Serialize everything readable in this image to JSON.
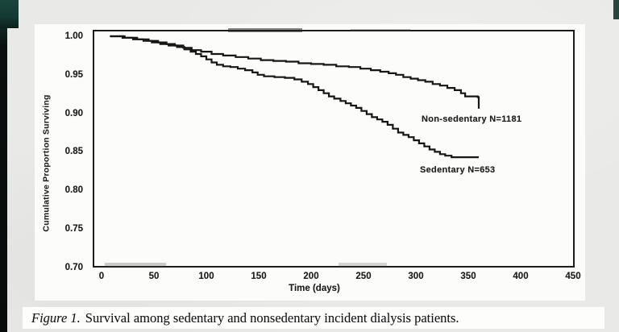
{
  "page": {
    "background_color": "#e9e9e7",
    "left_strip_color": "#0a100e",
    "corner_accent_color": "#16423a",
    "panel_color": "#fcfcfa"
  },
  "figure_caption": {
    "label": "Figure 1.",
    "text": "Survival among sedentary and nonsedentary incident dialysis patients."
  },
  "chart_data": {
    "type": "line",
    "subtype": "kaplan-meier-step",
    "title": "",
    "xlabel": "Time (days)",
    "ylabel": "Cumulative Proportion Surviving",
    "xlim": [
      -9,
      452
    ],
    "ylim": [
      0.7,
      1.0
    ],
    "x_ticks": [
      0,
      50,
      100,
      150,
      200,
      250,
      300,
      350,
      400,
      450
    ],
    "y_tick_labels": [
      "1.00",
      "0.95",
      "0.90",
      "0.85",
      "0.80",
      "0.75",
      "0.70"
    ],
    "grid": false,
    "legend_position": "inside-right",
    "line_color": "#161616",
    "series": [
      {
        "name": "Non-sedentary N=1181",
        "points": [
          [
            8,
            1.0
          ],
          [
            22,
            0.998
          ],
          [
            34,
            0.996
          ],
          [
            45,
            0.994
          ],
          [
            54,
            0.992
          ],
          [
            62,
            0.99
          ],
          [
            70,
            0.988
          ],
          [
            78,
            0.985
          ],
          [
            86,
            0.982
          ],
          [
            95,
            0.98
          ],
          [
            105,
            0.977
          ],
          [
            116,
            0.975
          ],
          [
            128,
            0.973
          ],
          [
            140,
            0.971
          ],
          [
            152,
            0.969
          ],
          [
            164,
            0.968
          ],
          [
            176,
            0.967
          ],
          [
            188,
            0.965
          ],
          [
            200,
            0.964
          ],
          [
            212,
            0.963
          ],
          [
            224,
            0.961
          ],
          [
            236,
            0.96
          ],
          [
            247,
            0.958
          ],
          [
            257,
            0.956
          ],
          [
            266,
            0.954
          ],
          [
            274,
            0.952
          ],
          [
            281,
            0.95
          ],
          [
            288,
            0.947
          ],
          [
            295,
            0.945
          ],
          [
            302,
            0.943
          ],
          [
            309,
            0.941
          ],
          [
            316,
            0.938
          ],
          [
            323,
            0.936
          ],
          [
            330,
            0.933
          ],
          [
            337,
            0.93
          ],
          [
            343,
            0.926
          ],
          [
            347,
            0.922
          ],
          [
            359,
            0.921
          ],
          [
            360,
            0.906
          ]
        ]
      },
      {
        "name": "Sedentary N=653",
        "points": [
          [
            8,
            1.0
          ],
          [
            20,
            0.998
          ],
          [
            30,
            0.996
          ],
          [
            40,
            0.994
          ],
          [
            48,
            0.992
          ],
          [
            56,
            0.99
          ],
          [
            64,
            0.988
          ],
          [
            72,
            0.986
          ],
          [
            79,
            0.983
          ],
          [
            85,
            0.98
          ],
          [
            90,
            0.977
          ],
          [
            95,
            0.974
          ],
          [
            100,
            0.97
          ],
          [
            105,
            0.966
          ],
          [
            110,
            0.963
          ],
          [
            116,
            0.961
          ],
          [
            123,
            0.96
          ],
          [
            130,
            0.958
          ],
          [
            137,
            0.956
          ],
          [
            144,
            0.953
          ],
          [
            149,
            0.95
          ],
          [
            155,
            0.948
          ],
          [
            165,
            0.947
          ],
          [
            175,
            0.946
          ],
          [
            184,
            0.944
          ],
          [
            191,
            0.941
          ],
          [
            197,
            0.938
          ],
          [
            202,
            0.934
          ],
          [
            207,
            0.93
          ],
          [
            212,
            0.926
          ],
          [
            217,
            0.922
          ],
          [
            222,
            0.919
          ],
          [
            228,
            0.916
          ],
          [
            233,
            0.913
          ],
          [
            238,
            0.91
          ],
          [
            243,
            0.907
          ],
          [
            248,
            0.903
          ],
          [
            253,
            0.899
          ],
          [
            258,
            0.895
          ],
          [
            263,
            0.892
          ],
          [
            268,
            0.889
          ],
          [
            273,
            0.885
          ],
          [
            278,
            0.88
          ],
          [
            283,
            0.875
          ],
          [
            288,
            0.872
          ],
          [
            293,
            0.869
          ],
          [
            298,
            0.865
          ],
          [
            303,
            0.861
          ],
          [
            308,
            0.857
          ],
          [
            313,
            0.853
          ],
          [
            318,
            0.85
          ],
          [
            323,
            0.847
          ],
          [
            328,
            0.845
          ],
          [
            334,
            0.843
          ],
          [
            360,
            0.843
          ]
        ]
      }
    ]
  }
}
